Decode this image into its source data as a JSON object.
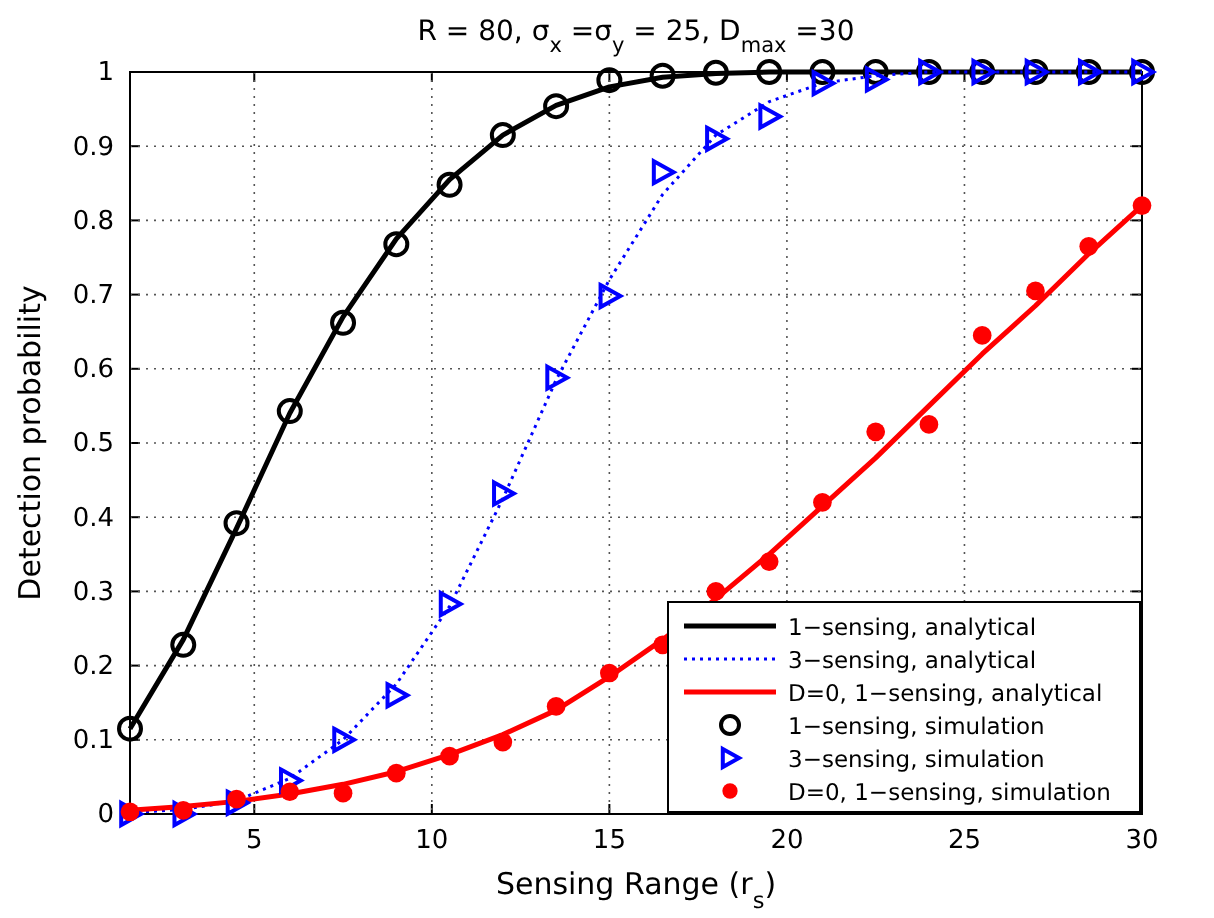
{
  "chart_data": {
    "type": "line",
    "title": "R = 80, σ$_{x}$ =σ$_{y}$ = 25, D$_{max}$ =30",
    "xlabel": "Sensing Range (r$_{s}$)",
    "ylabel": "Detection probability",
    "x": [
      1.5,
      3,
      4.5,
      6,
      7.5,
      9,
      10.5,
      12,
      13.5,
      15,
      16.5,
      18,
      19.5,
      21,
      22.5,
      24,
      25.5,
      27,
      28.5,
      30
    ],
    "xlim": [
      1.5,
      30
    ],
    "xticks": [
      5,
      10,
      15,
      20,
      25,
      30
    ],
    "ylim": [
      0,
      1
    ],
    "yticks": [
      0,
      0.1,
      0.2,
      0.3,
      0.4,
      0.5,
      0.6,
      0.7,
      0.8,
      0.9,
      1
    ],
    "grid": true,
    "legend": "bottom right",
    "series": [
      {
        "name": "1−sensing, analytical",
        "type": "line",
        "color": "#000000",
        "line_style": "solid",
        "values": [
          0.115,
          0.235,
          0.385,
          0.54,
          0.67,
          0.775,
          0.855,
          0.915,
          0.955,
          0.98,
          0.993,
          0.998,
          1,
          1,
          1,
          1,
          1,
          1,
          1,
          1
        ]
      },
      {
        "name": "3−sensing, analytical",
        "type": "line",
        "color": "#0000ff",
        "line_style": "dotted",
        "values": [
          0.002,
          0.006,
          0.018,
          0.048,
          0.1,
          0.175,
          0.28,
          0.425,
          0.585,
          0.72,
          0.835,
          0.915,
          0.96,
          0.985,
          0.995,
          1,
          1,
          1,
          1,
          1
        ]
      },
      {
        "name": "D=0, 1−sensing, analytical",
        "type": "line",
        "color": "#ff0000",
        "line_style": "solid",
        "values": [
          0.005,
          0.01,
          0.017,
          0.027,
          0.04,
          0.057,
          0.08,
          0.107,
          0.14,
          0.185,
          0.235,
          0.29,
          0.35,
          0.415,
          0.48,
          0.55,
          0.62,
          0.685,
          0.755,
          0.82
        ]
      },
      {
        "name": "1−sensing, simulation",
        "type": "scatter",
        "color": "#000000",
        "marker": "circle",
        "values": [
          0.115,
          0.228,
          0.392,
          0.543,
          0.662,
          0.768,
          0.848,
          0.915,
          0.954,
          0.989,
          0.995,
          0.999,
          1,
          1,
          1,
          1,
          1,
          1,
          1,
          1
        ]
      },
      {
        "name": "3−sensing, simulation",
        "type": "scatter",
        "color": "#0000ff",
        "marker": "triangle",
        "values": [
          0,
          0,
          0.015,
          0.045,
          0.1,
          0.16,
          0.283,
          0.432,
          0.588,
          0.698,
          0.865,
          0.91,
          0.94,
          0.985,
          0.99,
          1,
          1,
          1,
          1,
          1
        ]
      },
      {
        "name": "D=0, 1−sensing, simulation",
        "type": "scatter",
        "color": "#ff0000",
        "values": [
          0.003,
          0.005,
          0.02,
          0.03,
          0.028,
          0.055,
          0.078,
          0.097,
          0.145,
          0.19,
          0.228,
          0.3,
          0.34,
          0.42,
          0.515,
          0.525,
          0.645,
          0.705,
          0.765,
          0.82
        ]
      }
    ]
  }
}
